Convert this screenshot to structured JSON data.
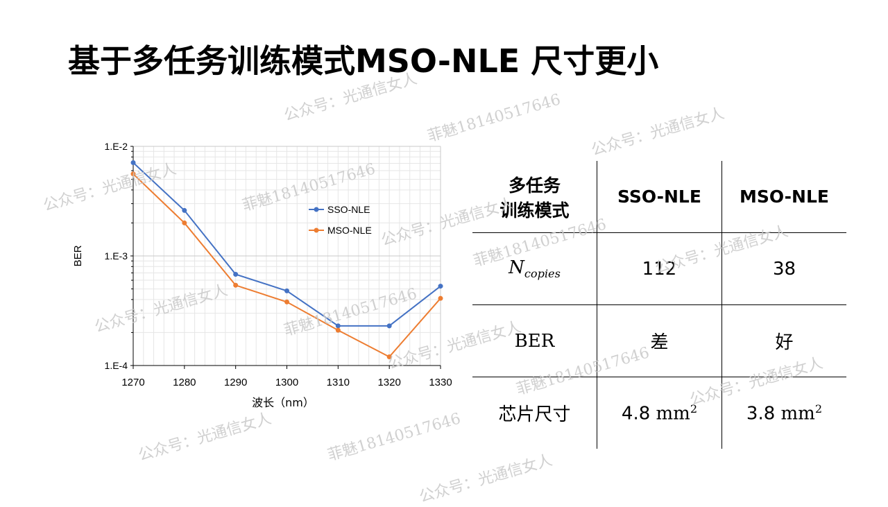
{
  "title": "基于多任务训练模式MSO-NLE 尺寸更小",
  "watermarks": [
    "公众号：光通信女人",
    "菲魅18140517646"
  ],
  "chart_data": {
    "type": "line",
    "xlabel": "波长（nm）",
    "ylabel": "BER",
    "x": [
      1270,
      1280,
      1290,
      1300,
      1310,
      1320,
      1330
    ],
    "xlim": [
      1270,
      1330
    ],
    "ylim": [
      0.0001,
      0.01
    ],
    "yscale": "log",
    "yticks": [
      "1.E-2",
      "1.E-3",
      "1.E-4"
    ],
    "xticks": [
      "1270",
      "1280",
      "1290",
      "1300",
      "1310",
      "1320",
      "1330"
    ],
    "grid": true,
    "legend_position": "right",
    "series": [
      {
        "name": "SSO-NLE",
        "color": "#4472C4",
        "values": [
          0.0071,
          0.0026,
          0.00068,
          0.00048,
          0.00023,
          0.00023,
          0.00053
        ]
      },
      {
        "name": "MSO-NLE",
        "color": "#ED7D31",
        "values": [
          0.0056,
          0.002,
          0.00054,
          0.00038,
          0.00021,
          0.00012,
          0.00041
        ]
      }
    ]
  },
  "table": {
    "header": {
      "label_line1": "多任务",
      "label_line2": "训练模式",
      "col1": "SSO-NLE",
      "col2": "MSO-NLE"
    },
    "rows": {
      "copies": {
        "label_main": "N",
        "label_sub": "copies",
        "col1": "112",
        "col2": "38"
      },
      "ber": {
        "label": "BER",
        "col1": "差",
        "col2": "好"
      },
      "size": {
        "label": "芯片尺寸",
        "col1_value": "4.8",
        "col2_value": "3.8",
        "unit": "mm",
        "unit_power": "2"
      }
    }
  }
}
